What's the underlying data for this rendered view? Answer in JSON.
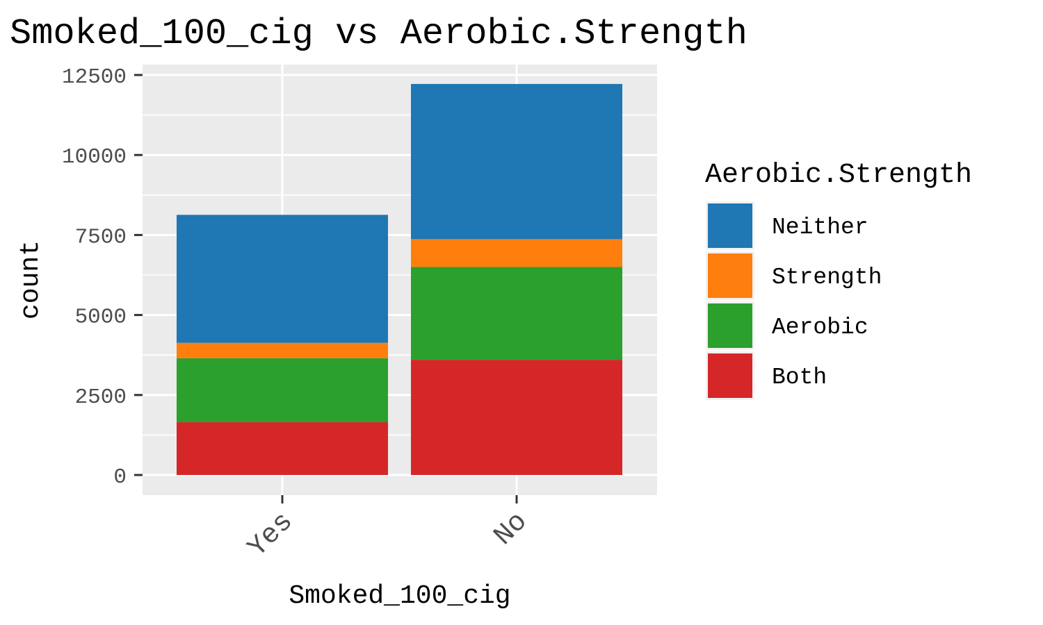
{
  "chart_data": {
    "type": "bar",
    "stacked": true,
    "title": "Smoked_100_cig vs Aerobic.Strength",
    "xlabel": "Smoked_100_cig",
    "ylabel": "count",
    "categories": [
      "Yes",
      "No"
    ],
    "ylim": [
      -600,
      13000
    ],
    "yticks": [
      0,
      2500,
      5000,
      7500,
      10000,
      12500
    ],
    "ytick_labels": [
      "0",
      "2500",
      "5000",
      "7500",
      "10000",
      "12500"
    ],
    "grid": true,
    "legend": {
      "title": "Aerobic.Strength",
      "position": "right"
    },
    "series": [
      {
        "name": "Neither",
        "color": "#1f77b4",
        "values": [
          4000,
          4850
        ]
      },
      {
        "name": "Strength",
        "color": "#ff7f0e",
        "values": [
          480,
          870
        ]
      },
      {
        "name": "Aerobic",
        "color": "#2ca02c",
        "values": [
          2000,
          2900
        ]
      },
      {
        "name": "Both",
        "color": "#d62728",
        "values": [
          1650,
          3600
        ]
      }
    ]
  }
}
